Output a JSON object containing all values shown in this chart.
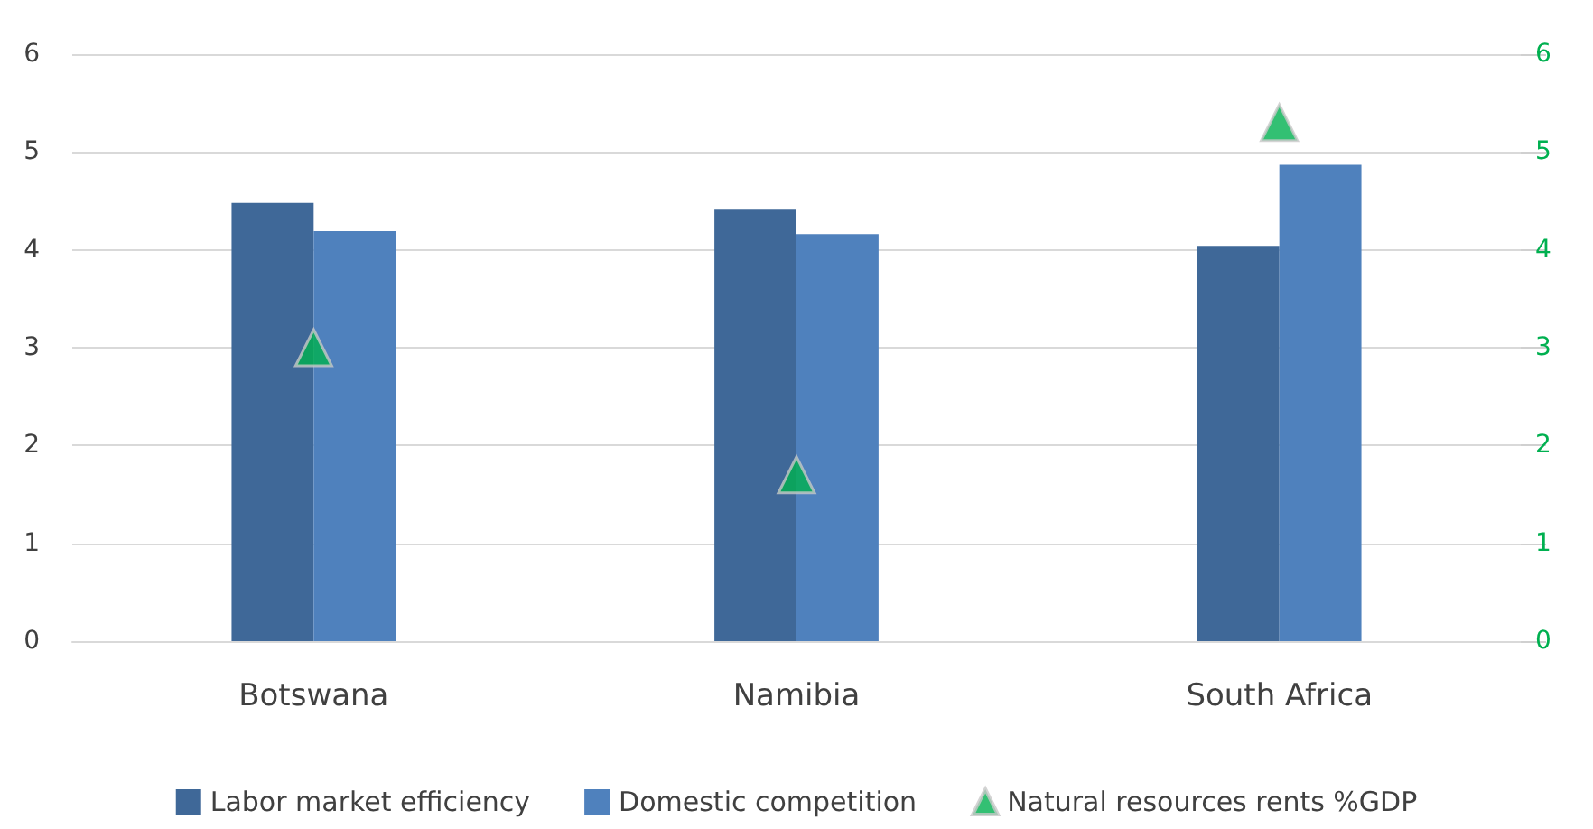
{
  "chart_data": {
    "type": "bar",
    "categories": [
      "Botswana",
      "Namibia",
      "South Africa"
    ],
    "series": [
      {
        "name": "Labor market efficiency",
        "color": "#3f6898",
        "values": [
          4.48,
          4.42,
          4.04
        ]
      },
      {
        "name": "Domestic competition",
        "color": "#4f81bd",
        "values": [
          4.19,
          4.16,
          4.87
        ]
      },
      {
        "name": "Natural resources rents %GDP",
        "type": "scatter",
        "color": "#00b050",
        "axis": "y2",
        "marker": "triangle",
        "values": [
          3.0,
          1.7,
          5.3
        ]
      }
    ],
    "ylim": [
      0,
      6
    ],
    "yticks": [
      0,
      1,
      2,
      3,
      4,
      5,
      6
    ],
    "y2lim": [
      0,
      6
    ],
    "y2ticks": [
      0,
      1,
      2,
      3,
      4,
      5,
      6
    ],
    "grid": "y",
    "legend": "bottom"
  }
}
